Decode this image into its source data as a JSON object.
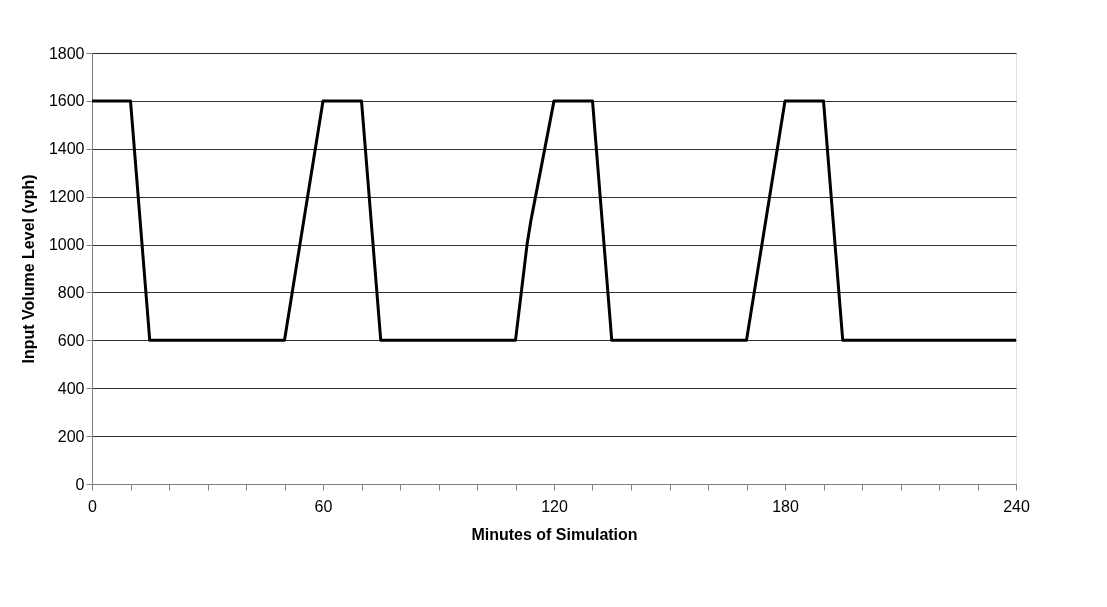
{
  "chart_data": {
    "type": "line",
    "xlabel": "Minutes of Simulation",
    "ylabel": "Input Volume Level (vph)",
    "x": [
      0,
      10,
      15,
      50,
      60,
      70,
      75,
      110,
      113,
      114,
      120,
      130,
      135,
      170,
      180,
      190,
      195,
      240
    ],
    "series": [
      {
        "color": "#000000",
        "values": [
          1600,
          1600,
          600,
          600,
          1600,
          1600,
          600,
          600,
          1000,
          1100,
          1600,
          1600,
          600,
          600,
          1600,
          1600,
          600,
          600
        ]
      }
    ],
    "xlim": [
      0,
      240
    ],
    "xticks": [
      0,
      {
        "value": 10,
        "label": null
      },
      {
        "value": 20,
        "label": null
      },
      {
        "value": 30,
        "label": null
      },
      {
        "value": 40,
        "label": null
      },
      {
        "value": 50,
        "label": null
      },
      60,
      {
        "value": 70,
        "label": null
      },
      {
        "value": 80,
        "label": null
      },
      {
        "value": 90,
        "label": null
      },
      {
        "value": 100,
        "label": null
      },
      {
        "value": 110,
        "label": null
      },
      120,
      {
        "value": 130,
        "label": null
      },
      {
        "value": 140,
        "label": null
      },
      {
        "value": 150,
        "label": null
      },
      {
        "value": 160,
        "label": null
      },
      {
        "value": 170,
        "label": null
      },
      180,
      {
        "value": 190,
        "label": null
      },
      {
        "value": 200,
        "label": null
      },
      {
        "value": 210,
        "label": null
      },
      {
        "value": 220,
        "label": null
      },
      {
        "value": 230,
        "label": null
      },
      240
    ],
    "ylim": [
      0,
      1800
    ],
    "yticks": [
      0,
      200,
      400,
      600,
      800,
      1000,
      1200,
      1400,
      1600,
      1800
    ],
    "grid": "y",
    "marker": "none",
    "line_style": "solid"
  }
}
